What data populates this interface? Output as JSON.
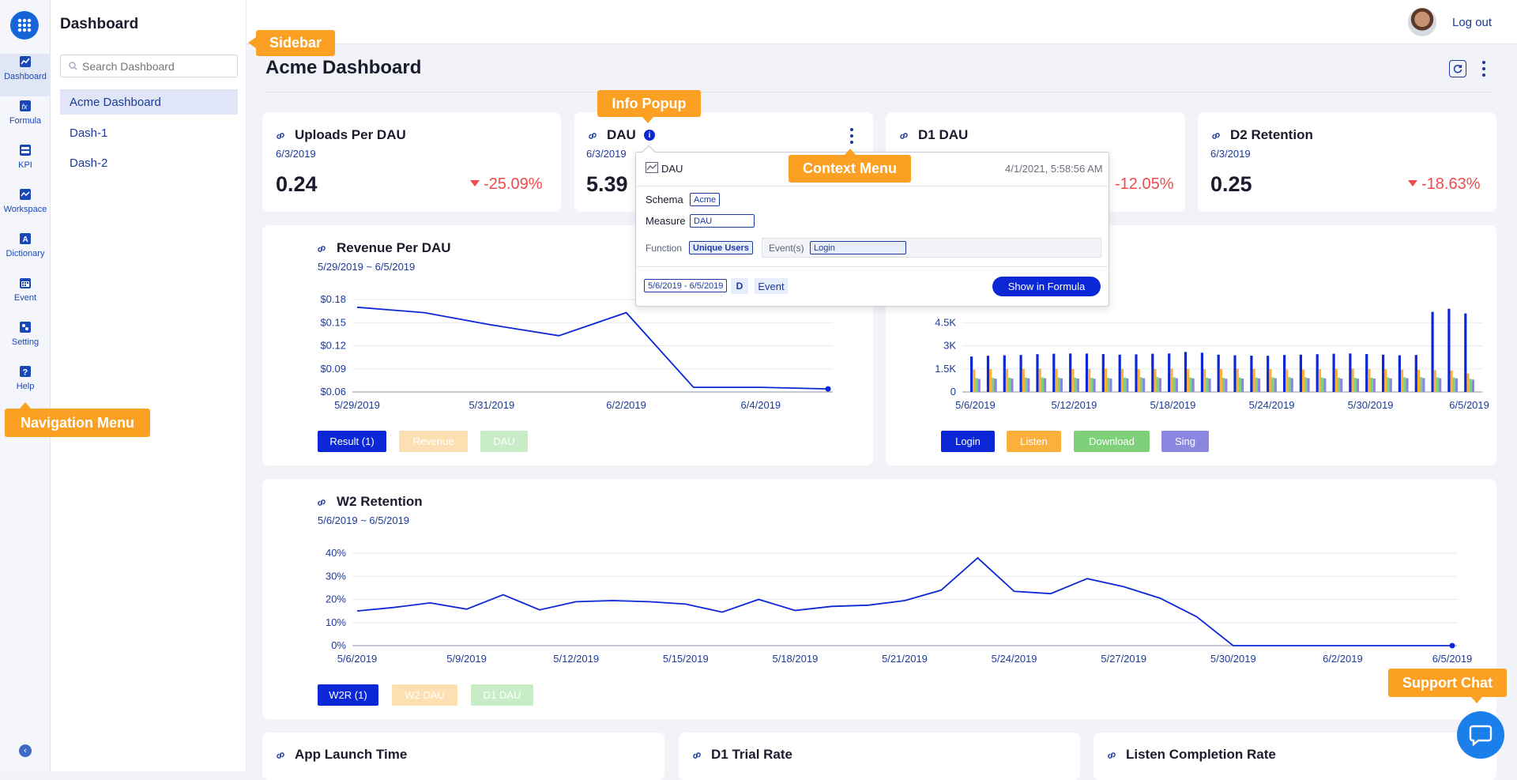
{
  "nav": {
    "items": [
      {
        "label": "Dashboard",
        "icon": "dashboard-icon"
      },
      {
        "label": "Formula",
        "icon": "formula-icon"
      },
      {
        "label": "KPI",
        "icon": "kpi-icon"
      },
      {
        "label": "Workspace",
        "icon": "workspace-icon"
      },
      {
        "label": "Dictionary",
        "icon": "dictionary-icon"
      },
      {
        "label": "Event",
        "icon": "event-icon"
      },
      {
        "label": "Setting",
        "icon": "setting-icon"
      },
      {
        "label": "Help",
        "icon": "help-icon"
      }
    ],
    "active": "Dashboard"
  },
  "sidebar": {
    "title": "Dashboard",
    "search_placeholder": "Search Dashboard",
    "items": [
      "Acme Dashboard",
      "Dash-1",
      "Dash-2"
    ]
  },
  "topbar": {
    "logout": "Log out"
  },
  "page": {
    "title": "Acme Dashboard"
  },
  "tooltips": {
    "sidebar": "Sidebar",
    "info_popup": "Info Popup",
    "context_menu": "Context Menu",
    "navigation_menu": "Navigation Menu",
    "support_chat": "Support Chat"
  },
  "kpi_cards": [
    {
      "title": "Uploads Per DAU",
      "date": "6/3/2019",
      "value": "0.24",
      "change": "-25.09%"
    },
    {
      "title": "DAU",
      "date": "6/3/2019",
      "value": "5.39",
      "change": ""
    },
    {
      "title": "D1 DAU",
      "date": "",
      "value": "",
      "change": "-12.05%"
    },
    {
      "title": "D2 Retention",
      "date": "6/3/2019",
      "value": "0.25",
      "change": "-18.63%"
    }
  ],
  "popup": {
    "title": "DAU",
    "timestamp": "4/1/2021, 5:58:56 AM",
    "schema_label": "Schema",
    "schema_value": "Acme",
    "measure_label": "Measure",
    "measure_value": "DAU",
    "function_label": "Function",
    "function_value": "Unique Users",
    "events_label": "Event(s)",
    "events_value": "Login",
    "date_range": "5/6/2019 - 6/5/2019",
    "granularity": "D",
    "type": "Event",
    "action": "Show in Formula"
  },
  "revenue_chart": {
    "title": "Revenue Per DAU",
    "range": "5/29/2019 ~ 6/5/2019",
    "legend": [
      "Result (1)",
      "Revenue",
      "DAU"
    ]
  },
  "events_chart": {
    "legend": [
      "Login",
      "Listen",
      "Download",
      "Sing"
    ]
  },
  "w2_chart": {
    "title": "W2 Retention",
    "range": "5/6/2019 ~ 6/5/2019",
    "legend": [
      "W2R (1)",
      "W2 DAU",
      "D1 DAU"
    ]
  },
  "bottom_cards": [
    "App Launch Time",
    "D1 Trial Rate",
    "Listen Completion Rate"
  ],
  "colors": {
    "primary": "#0b27d6",
    "listen": "#fbb03b",
    "download": "#7ed07a",
    "sing": "#8b86e0",
    "negative": "#f04a4a",
    "tooltip": "#fba023"
  },
  "chart_data": [
    {
      "type": "line",
      "title": "Revenue Per DAU",
      "x": [
        "5/29/2019",
        "5/30/2019",
        "5/31/2019",
        "6/1/2019",
        "6/2/2019",
        "6/3/2019",
        "6/4/2019",
        "6/5/2019"
      ],
      "series": [
        {
          "name": "Result (1)",
          "values": [
            0.17,
            0.163,
            0.147,
            0.133,
            0.163,
            0.066,
            0.066,
            0.064
          ]
        }
      ],
      "xticks": [
        "5/29/2019",
        "5/31/2019",
        "6/2/2019",
        "6/4/2019"
      ],
      "yticks": [
        "$0.06",
        "$0.09",
        "$0.12",
        "$0.15",
        "$0.18"
      ],
      "ylim": [
        0.06,
        0.18
      ]
    },
    {
      "type": "bar",
      "x": [
        "5/6/2019",
        "5/7/2019",
        "5/8/2019",
        "5/9/2019",
        "5/10/2019",
        "5/11/2019",
        "5/12/2019",
        "5/13/2019",
        "5/14/2019",
        "5/15/2019",
        "5/16/2019",
        "5/17/2019",
        "5/18/2019",
        "5/19/2019",
        "5/20/2019",
        "5/21/2019",
        "5/22/2019",
        "5/23/2019",
        "5/24/2019",
        "5/25/2019",
        "5/26/2019",
        "5/27/2019",
        "5/28/2019",
        "5/29/2019",
        "5/30/2019",
        "5/31/2019",
        "6/1/2019",
        "6/2/2019",
        "6/3/2019",
        "6/4/2019",
        "6/5/2019"
      ],
      "series": [
        {
          "name": "Login",
          "values": [
            2300,
            2350,
            2380,
            2400,
            2450,
            2480,
            2500,
            2490,
            2460,
            2420,
            2440,
            2480,
            2500,
            2600,
            2550,
            2420,
            2380,
            2360,
            2350,
            2400,
            2420,
            2450,
            2480,
            2500,
            2460,
            2420,
            2380,
            2400,
            5200,
            5400,
            5100
          ]
        },
        {
          "name": "Listen",
          "values": [
            1450,
            1480,
            1500,
            1500,
            1520,
            1500,
            1480,
            1500,
            1520,
            1500,
            1480,
            1500,
            1520,
            1500,
            1480,
            1500,
            1520,
            1500,
            1480,
            1460,
            1450,
            1480,
            1500,
            1520,
            1500,
            1480,
            1450,
            1440,
            1420,
            1400,
            1200
          ]
        },
        {
          "name": "Download",
          "values": [
            900,
            920,
            930,
            940,
            950,
            940,
            930,
            920,
            930,
            940,
            950,
            960,
            950,
            940,
            930,
            920,
            930,
            940,
            950,
            960,
            950,
            940,
            930,
            920,
            930,
            940,
            950,
            960,
            950,
            940,
            850
          ]
        },
        {
          "name": "Sing",
          "values": [
            850,
            860,
            870,
            880,
            890,
            880,
            870,
            860,
            870,
            880,
            890,
            900,
            890,
            880,
            870,
            860,
            870,
            880,
            890,
            900,
            890,
            880,
            870,
            860,
            870,
            880,
            890,
            900,
            890,
            880,
            800
          ]
        }
      ],
      "xticks": [
        "5/6/2019",
        "5/12/2019",
        "5/18/2019",
        "5/24/2019",
        "5/30/2019",
        "6/5/2019"
      ],
      "yticks": [
        "0",
        "1.5K",
        "3K",
        "4.5K"
      ],
      "ylim": [
        0,
        6000
      ]
    },
    {
      "type": "line",
      "title": "W2 Retention",
      "x": [
        "5/6/2019",
        "5/7/2019",
        "5/8/2019",
        "5/9/2019",
        "5/10/2019",
        "5/11/2019",
        "5/12/2019",
        "5/13/2019",
        "5/14/2019",
        "5/15/2019",
        "5/16/2019",
        "5/17/2019",
        "5/18/2019",
        "5/19/2019",
        "5/20/2019",
        "5/21/2019",
        "5/22/2019",
        "5/23/2019",
        "5/24/2019",
        "5/25/2019",
        "5/26/2019",
        "5/27/2019",
        "5/28/2019",
        "5/29/2019",
        "5/30/2019",
        "5/31/2019",
        "6/1/2019",
        "6/2/2019",
        "6/3/2019",
        "6/4/2019",
        "6/5/2019"
      ],
      "series": [
        {
          "name": "W2R (1)",
          "values": [
            15,
            16.5,
            18.5,
            15.8,
            22,
            15.5,
            19,
            19.5,
            19,
            18,
            14.5,
            20,
            15.2,
            17,
            17.5,
            19.5,
            24,
            38,
            23.5,
            22.5,
            29,
            25.5,
            20.5,
            12.5,
            0,
            0,
            0,
            0,
            0,
            0,
            0
          ]
        }
      ],
      "xticks": [
        "5/6/2019",
        "5/9/2019",
        "5/12/2019",
        "5/15/2019",
        "5/18/2019",
        "5/21/2019",
        "5/24/2019",
        "5/27/2019",
        "5/30/2019",
        "6/2/2019",
        "6/5/2019"
      ],
      "yticks": [
        "0%",
        "10%",
        "20%",
        "30%",
        "40%"
      ],
      "ylim": [
        0,
        40
      ]
    }
  ]
}
